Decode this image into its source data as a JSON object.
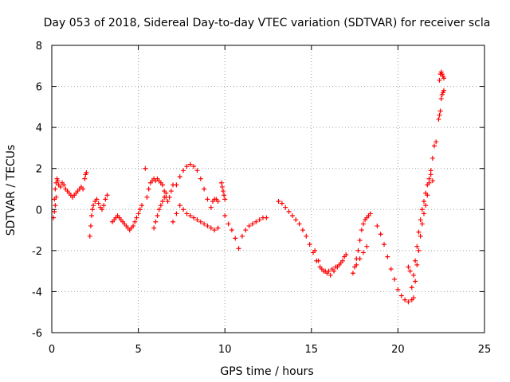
{
  "chart_data": {
    "type": "scatter",
    "title": "Day 053 of 2018, Sidereal Day-to-day VTEC variation (SDTVAR) for receiver scla",
    "xlabel": "GPS time / hours",
    "ylabel": "SDTVAR / TECUs",
    "xlim": [
      0,
      25
    ],
    "ylim": [
      -6,
      8
    ],
    "xticks": [
      0,
      5,
      10,
      15,
      20,
      25
    ],
    "yticks": [
      -6,
      -4,
      -2,
      0,
      2,
      4,
      6,
      8
    ],
    "xtick_labels": [
      "0",
      "5",
      "10",
      "15",
      "20",
      "25"
    ],
    "ytick_labels": [
      "-6",
      "-4",
      "-2",
      "0",
      "2",
      "4",
      "6",
      "8"
    ],
    "grid": true,
    "marker": "+",
    "color": "#ff0000",
    "series": [
      {
        "name": "seg1",
        "x": [
          0.15,
          0.2,
          0.25,
          0.3,
          0.35,
          0.4,
          0.5,
          0.6,
          0.7,
          0.8,
          0.9,
          1.0,
          1.1,
          1.2,
          1.3,
          1.4,
          1.5,
          1.6,
          1.7,
          1.8
        ],
        "y": [
          0.5,
          1.0,
          1.3,
          1.5,
          1.4,
          1.2,
          1.1,
          1.3,
          1.2,
          1.0,
          0.9,
          0.8,
          0.7,
          0.6,
          0.7,
          0.8,
          0.9,
          1.0,
          1.1,
          1.0
        ]
      },
      {
        "name": "seg2",
        "x": [
          0.1,
          0.15,
          0.2,
          0.25
        ],
        "y": [
          -0.4,
          -0.1,
          0.2,
          0.6
        ]
      },
      {
        "name": "seg3",
        "x": [
          1.9,
          1.95,
          2.0
        ],
        "y": [
          1.5,
          1.7,
          1.8
        ]
      },
      {
        "name": "seg4",
        "x": [
          2.2,
          2.25,
          2.3,
          2.35,
          2.4,
          2.5,
          2.6,
          2.7,
          2.8,
          2.9,
          3.0,
          3.1,
          3.2
        ],
        "y": [
          -1.3,
          -0.8,
          -0.3,
          0.0,
          0.2,
          0.4,
          0.5,
          0.3,
          0.1,
          0.0,
          0.2,
          0.5,
          0.7
        ]
      },
      {
        "name": "seg5",
        "x": [
          3.5,
          3.6,
          3.7,
          3.8,
          3.9,
          4.0,
          4.1,
          4.2,
          4.3,
          4.4,
          4.5,
          4.6,
          4.7,
          4.8,
          4.9,
          5.0,
          5.1,
          5.2
        ],
        "y": [
          -0.6,
          -0.5,
          -0.4,
          -0.3,
          -0.4,
          -0.5,
          -0.6,
          -0.7,
          -0.8,
          -0.9,
          -1.0,
          -0.9,
          -0.8,
          -0.6,
          -0.4,
          -0.2,
          0.0,
          0.2
        ]
      },
      {
        "name": "seg6",
        "x": [
          5.4
        ],
        "y": [
          2.0
        ]
      },
      {
        "name": "seg7",
        "x": [
          5.5,
          5.6,
          5.7,
          5.8,
          5.9,
          6.0,
          6.1,
          6.2,
          6.3,
          6.4,
          6.5,
          6.6,
          6.7,
          6.8,
          6.9,
          7.0
        ],
        "y": [
          0.6,
          1.0,
          1.3,
          1.4,
          1.5,
          1.4,
          1.5,
          1.4,
          1.3,
          1.2,
          0.9,
          0.6,
          0.4,
          0.6,
          0.9,
          1.2
        ]
      },
      {
        "name": "seg8",
        "x": [
          5.9,
          6.0,
          6.1,
          6.2,
          6.3,
          6.4,
          6.5,
          6.6
        ],
        "y": [
          -0.9,
          -0.6,
          -0.3,
          0.0,
          0.2,
          0.4,
          0.6,
          0.8
        ]
      },
      {
        "name": "seg9",
        "x": [
          7.0,
          7.2,
          7.4,
          7.6,
          7.8,
          8.0,
          8.2,
          8.4,
          8.6,
          8.8,
          9.0,
          9.2,
          9.4,
          9.6
        ],
        "y": [
          -0.6,
          -0.2,
          0.2,
          0.0,
          -0.2,
          -0.3,
          -0.4,
          -0.5,
          -0.6,
          -0.7,
          -0.8,
          -0.9,
          -1.0,
          -0.9
        ]
      },
      {
        "name": "seg10",
        "x": [
          7.2,
          7.4,
          7.6,
          7.8,
          8.0,
          8.2,
          8.4,
          8.6,
          8.8,
          9.0,
          9.2
        ],
        "y": [
          1.2,
          1.6,
          1.9,
          2.1,
          2.2,
          2.1,
          1.9,
          1.5,
          1.0,
          0.5,
          0.1
        ]
      },
      {
        "name": "seg11",
        "x": [
          9.3,
          9.4,
          9.5,
          9.6
        ],
        "y": [
          0.4,
          0.5,
          0.5,
          0.4
        ]
      },
      {
        "name": "seg12",
        "x": [
          9.8,
          9.85,
          9.9,
          9.95,
          10.0
        ],
        "y": [
          1.3,
          1.1,
          0.9,
          0.7,
          0.5
        ]
      },
      {
        "name": "seg13",
        "x": [
          10.0,
          10.2,
          10.4,
          10.6,
          10.8,
          11.0,
          11.2,
          11.4,
          11.6,
          11.8,
          12.0,
          12.2,
          12.4
        ],
        "y": [
          -0.3,
          -0.7,
          -1.0,
          -1.4,
          -1.9,
          -1.3,
          -1.0,
          -0.8,
          -0.7,
          -0.6,
          -0.5,
          -0.4,
          -0.4
        ]
      },
      {
        "name": "seg14",
        "x": [
          13.1,
          13.3,
          13.5,
          13.7,
          13.9,
          14.1,
          14.3,
          14.5,
          14.7,
          14.9,
          15.1,
          15.3,
          15.5,
          15.7,
          15.9,
          16.1,
          16.3,
          16.5,
          16.7,
          16.9
        ],
        "y": [
          0.4,
          0.3,
          0.1,
          -0.1,
          -0.3,
          -0.5,
          -0.7,
          -1.0,
          -1.3,
          -1.7,
          -2.1,
          -2.5,
          -2.8,
          -3.0,
          -3.1,
          -3.2,
          -3.0,
          -2.8,
          -2.6,
          -2.3
        ]
      },
      {
        "name": "seg15",
        "x": [
          15.2,
          15.4,
          15.6,
          15.8,
          16.0,
          16.2,
          16.4,
          16.6,
          16.8,
          17.0
        ],
        "y": [
          -2.0,
          -2.5,
          -2.9,
          -3.0,
          -3.0,
          -2.9,
          -2.8,
          -2.7,
          -2.5,
          -2.2
        ]
      },
      {
        "name": "seg16",
        "x": [
          17.4,
          17.5,
          17.6,
          17.7,
          17.8,
          17.9,
          18.0,
          18.1,
          18.2,
          18.3,
          18.4
        ],
        "y": [
          -3.1,
          -2.8,
          -2.4,
          -2.0,
          -1.5,
          -1.0,
          -0.7,
          -0.5,
          -0.4,
          -0.3,
          -0.2
        ]
      },
      {
        "name": "seg17",
        "x": [
          17.6,
          17.8,
          18.0,
          18.2
        ],
        "y": [
          -2.7,
          -2.4,
          -2.1,
          -1.8
        ]
      },
      {
        "name": "seg18",
        "x": [
          18.8,
          19.0,
          19.2,
          19.4,
          19.6,
          19.8,
          20.0,
          20.2,
          20.4,
          20.6,
          20.8
        ],
        "y": [
          -0.8,
          -1.2,
          -1.7,
          -2.3,
          -2.9,
          -3.4,
          -3.9,
          -4.2,
          -4.4,
          -4.5,
          -4.4
        ]
      },
      {
        "name": "seg19",
        "x": [
          20.6,
          20.7,
          20.8,
          20.9,
          21.0,
          21.1,
          21.2,
          21.3,
          21.4,
          21.5,
          21.6,
          21.7,
          21.8,
          21.9,
          22.0,
          22.1,
          22.2
        ],
        "y": [
          -2.8,
          -3.0,
          -3.8,
          -4.3,
          -3.5,
          -2.7,
          -2.0,
          -1.3,
          -0.7,
          -0.2,
          0.2,
          0.7,
          1.3,
          1.9,
          2.5,
          3.1,
          3.3
        ]
      },
      {
        "name": "seg20",
        "x": [
          20.9,
          21.0,
          21.1,
          21.2,
          21.3,
          21.4,
          21.5,
          21.6,
          21.7,
          21.8,
          21.9,
          22.0
        ],
        "y": [
          -3.2,
          -2.5,
          -1.8,
          -1.1,
          -0.5,
          0.0,
          0.4,
          0.8,
          1.2,
          1.5,
          1.7,
          1.4
        ]
      },
      {
        "name": "seg21",
        "x": [
          22.35,
          22.4,
          22.45,
          22.5,
          22.55,
          22.6,
          22.65
        ],
        "y": [
          4.4,
          4.6,
          4.8,
          5.4,
          5.6,
          5.7,
          5.8
        ]
      },
      {
        "name": "seg22",
        "x": [
          22.4,
          22.45,
          22.5,
          22.55,
          22.6,
          22.65
        ],
        "y": [
          6.3,
          6.6,
          6.7,
          6.6,
          6.5,
          6.4
        ]
      }
    ]
  }
}
